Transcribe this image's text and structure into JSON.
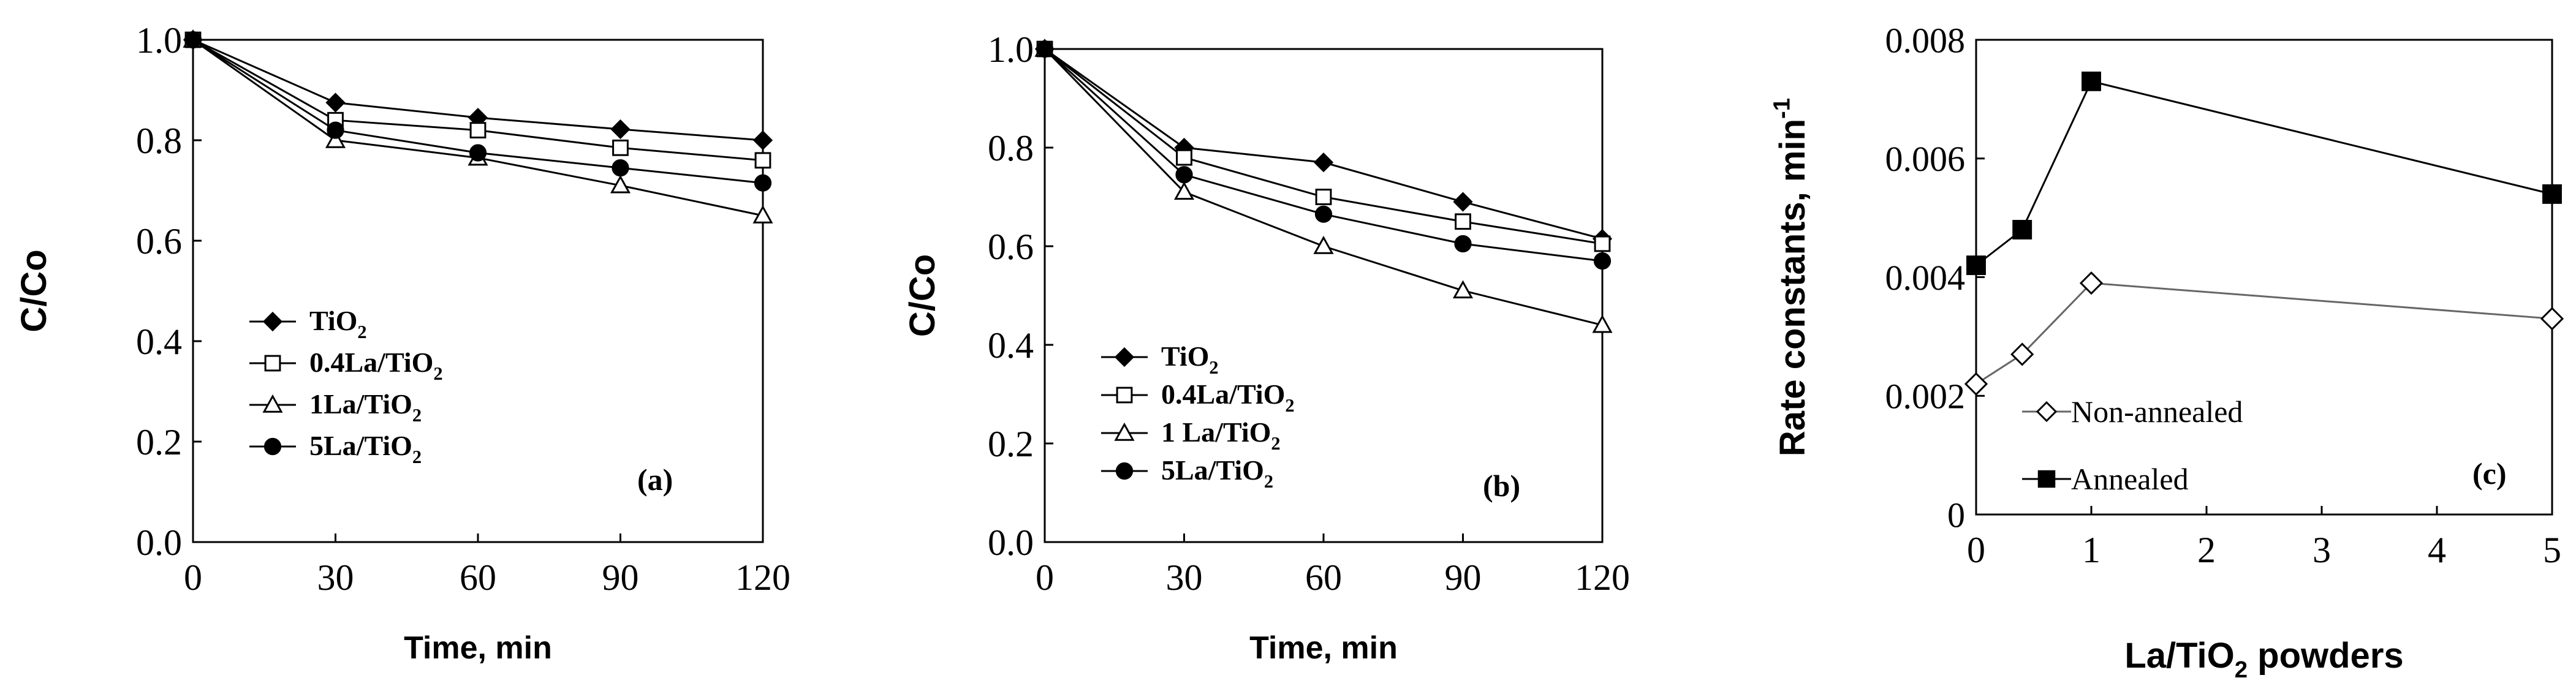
{
  "chart_data": [
    {
      "type": "line",
      "panel_label": "(a)",
      "xlabel": "Time, min",
      "ylabel": "C/Co",
      "x": [
        0,
        30,
        60,
        90,
        120
      ],
      "xticks": [
        "0",
        "30",
        "60",
        "90",
        "120"
      ],
      "xlim": [
        0,
        120
      ],
      "ylim": [
        0,
        1
      ],
      "yticks": [
        "0.0",
        "0.2",
        "0.4",
        "0.6",
        "0.8",
        "1.0"
      ],
      "ytick_values": [
        0,
        0.2,
        0.4,
        0.6,
        0.8,
        1.0
      ],
      "grid": false,
      "legend_position": "lower-left",
      "series": [
        {
          "name": "TiO2",
          "legend_main": "TiO",
          "legend_sub": "2",
          "marker": "filled-diamond",
          "values": [
            1.0,
            0.875,
            0.845,
            0.822,
            0.8
          ]
        },
        {
          "name": "0.4La/TiO2",
          "legend_main": "0.4La/TiO",
          "legend_sub": "2",
          "marker": "open-square",
          "values": [
            1.0,
            0.84,
            0.82,
            0.785,
            0.76
          ]
        },
        {
          "name": "1La/TiO2",
          "legend_main": "1La/TiO",
          "legend_sub": "2",
          "marker": "open-triangle",
          "values": [
            1.0,
            0.8,
            0.765,
            0.71,
            0.65
          ]
        },
        {
          "name": "5La/TiO2",
          "legend_main": "5La/TiO",
          "legend_sub": "2",
          "marker": "filled-circle",
          "values": [
            1.0,
            0.82,
            0.775,
            0.745,
            0.715
          ]
        }
      ]
    },
    {
      "type": "line",
      "panel_label": "(b)",
      "xlabel": "Time, min",
      "ylabel": "C/Co",
      "x": [
        0,
        30,
        60,
        90,
        120
      ],
      "xticks": [
        "0",
        "30",
        "60",
        "90",
        "120"
      ],
      "xlim": [
        0,
        120
      ],
      "ylim": [
        0,
        1
      ],
      "yticks": [
        "0.0",
        "0.2",
        "0.4",
        "0.6",
        "0.8",
        "1.0"
      ],
      "ytick_values": [
        0,
        0.2,
        0.4,
        0.6,
        0.8,
        1.0
      ],
      "grid": false,
      "legend_position": "lower-left",
      "series": [
        {
          "name": "TiO2",
          "legend_main": "TiO",
          "legend_sub": "2",
          "marker": "filled-diamond",
          "values": [
            1.0,
            0.8,
            0.77,
            0.69,
            0.615
          ]
        },
        {
          "name": "0.4La/TiO2",
          "legend_main": "0.4La/TiO",
          "legend_sub": "2",
          "marker": "open-square",
          "values": [
            1.0,
            0.78,
            0.7,
            0.65,
            0.605
          ]
        },
        {
          "name": "1 La/TiO2",
          "legend_main": "1 La/TiO",
          "legend_sub": "2",
          "marker": "open-triangle",
          "values": [
            1.0,
            0.71,
            0.6,
            0.51,
            0.44
          ]
        },
        {
          "name": "5La/TiO2",
          "legend_main": "5La/TiO",
          "legend_sub": "2",
          "marker": "filled-circle",
          "values": [
            1.0,
            0.745,
            0.665,
            0.605,
            0.57
          ]
        }
      ]
    },
    {
      "type": "line",
      "panel_label": "(c)",
      "xlabel_main": "La/TiO",
      "xlabel_sub": "2",
      "xlabel_tail": " powders",
      "ylabel_main": "Rate constants, min",
      "ylabel_sup": "-1",
      "xticks": [
        "0",
        "1",
        "2",
        "3",
        "4",
        "5"
      ],
      "xtick_values": [
        0,
        1,
        2,
        3,
        4,
        5
      ],
      "xlim": [
        0,
        5
      ],
      "ylim": [
        0,
        0.008
      ],
      "yticks": [
        "0",
        "0.002",
        "0.004",
        "0.006",
        "0.008"
      ],
      "ytick_values": [
        0,
        0.002,
        0.004,
        0.006,
        0.008
      ],
      "grid": false,
      "legend_position": "lower-left",
      "series": [
        {
          "name": "Non-annealed",
          "marker": "open-diamond",
          "x": [
            0,
            0.4,
            1,
            5
          ],
          "values": [
            0.0022,
            0.0027,
            0.0039,
            0.0033
          ]
        },
        {
          "name": "Annealed",
          "marker": "filled-square",
          "x": [
            0,
            0.4,
            1,
            5
          ],
          "values": [
            0.0042,
            0.0048,
            0.0073,
            0.0054
          ]
        }
      ]
    }
  ]
}
